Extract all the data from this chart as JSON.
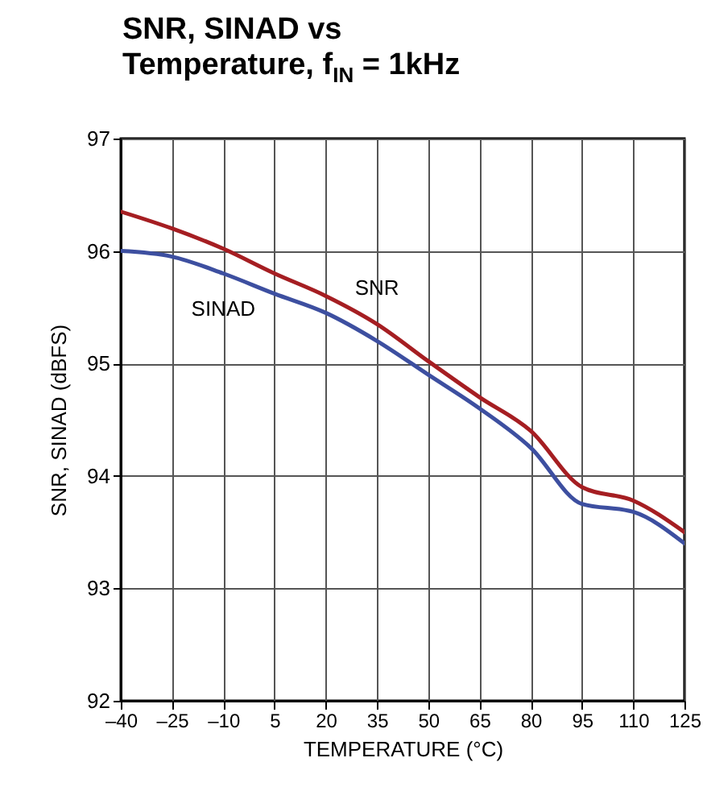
{
  "chart_data": {
    "type": "line",
    "title": "SNR, SINAD vs Temperature, f$_{IN}$ = 1kHz",
    "xlabel": "TEMPERATURE (°C)",
    "ylabel": "SNR, SINAD (dBFS)",
    "x": [
      -40,
      -25,
      -10,
      5,
      20,
      35,
      50,
      65,
      80,
      95,
      110,
      125
    ],
    "series": [
      {
        "name": "SNR",
        "color": "#a51e22",
        "values": [
          96.35,
          96.2,
          96.02,
          95.8,
          95.6,
          95.35,
          95.02,
          94.7,
          94.4,
          93.9,
          93.78,
          93.5
        ]
      },
      {
        "name": "SINAD",
        "color": "#3d4fa0",
        "values": [
          96.0,
          95.95,
          95.8,
          95.62,
          95.45,
          95.2,
          94.9,
          94.6,
          94.25,
          93.75,
          93.68,
          93.4
        ]
      }
    ],
    "xlim": [
      -40,
      125
    ],
    "xticks": [
      {
        "value": -40,
        "label": "–40"
      },
      {
        "value": -25,
        "label": "–25"
      },
      {
        "value": -10,
        "label": "–10"
      },
      5,
      20,
      35,
      50,
      65,
      80,
      95,
      110,
      125
    ],
    "ylim": [
      92,
      97
    ],
    "yticks": [
      92,
      93,
      94,
      95,
      96,
      97
    ],
    "grid": true,
    "line_style": "solid"
  }
}
